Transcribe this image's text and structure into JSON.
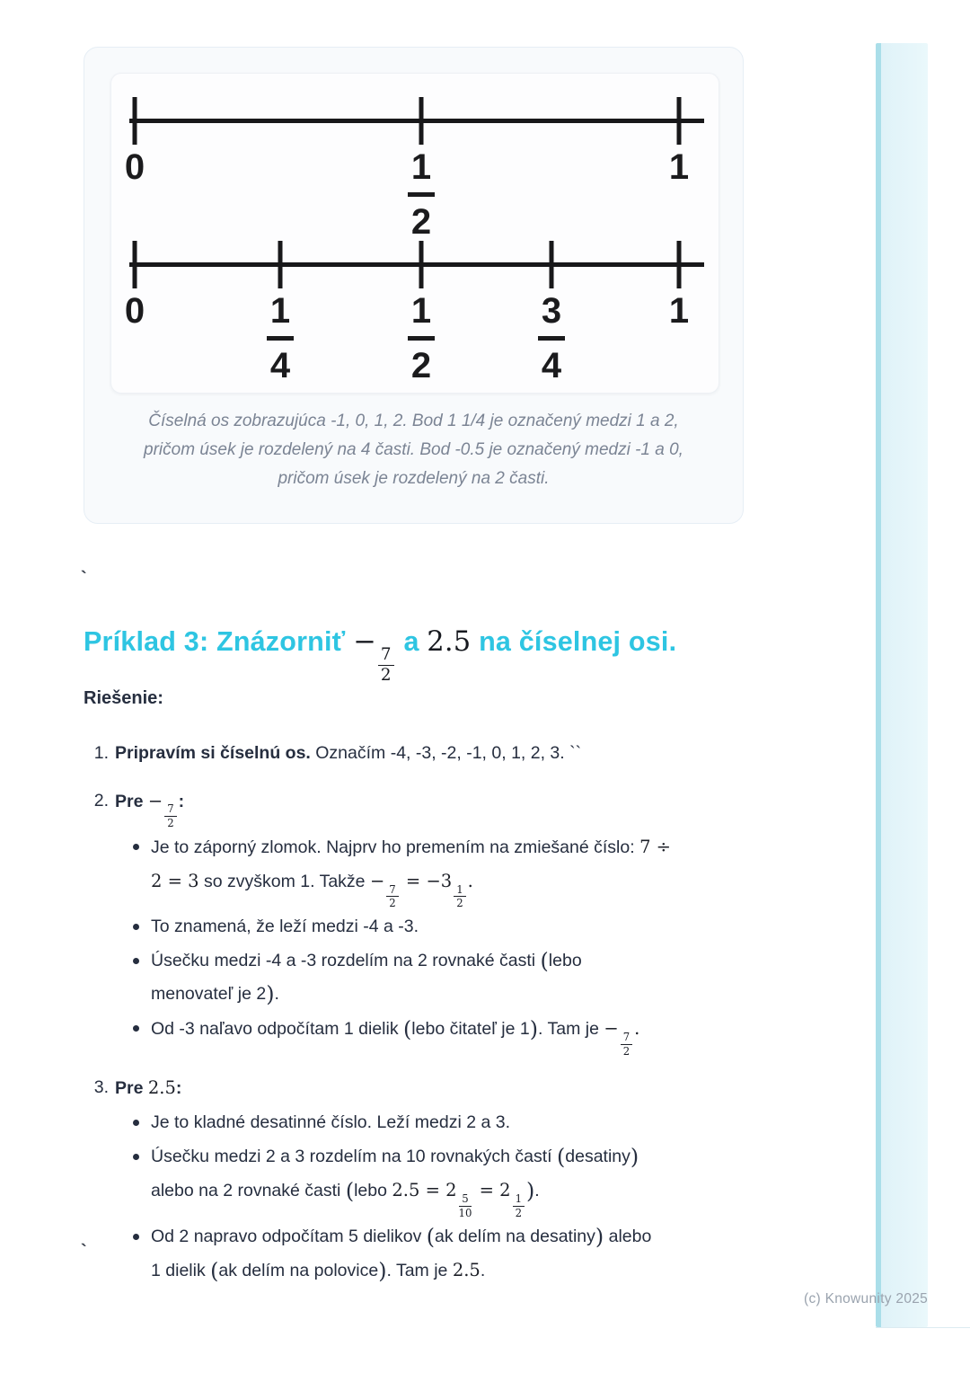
{
  "bullet_char": "•",
  "colors": {
    "accent": "#2ec5e2",
    "body_text": "#262e3f",
    "caption_text": "#7b8494",
    "figure_ink": "#18181a",
    "bar_fill": "#e7f5f9",
    "bar_edge": "#aadee9",
    "footer_text": "#9aa3ae"
  },
  "figure": {
    "line1": {
      "description": "number line 0 to 1 with midpoint one half",
      "ticks": [
        {
          "whole": "0"
        },
        {
          "num": "1",
          "den": "2"
        },
        {
          "whole": "1"
        }
      ]
    },
    "line2": {
      "description": "number line 0 to 1 divided into quarters",
      "ticks": [
        {
          "whole": "0"
        },
        {
          "num": "1",
          "den": "4"
        },
        {
          "num": "1",
          "den": "2"
        },
        {
          "num": "3",
          "den": "4"
        },
        {
          "whole": "1"
        }
      ]
    },
    "caption": [
      "Číselná os zobrazujúca -1, 0, 1, 2. Bod 1 1/4 je označený medzi 1 a 2,",
      "pričom úsek je rozdelený na 4 časti. Bod -0.5 je označený medzi -1 a 0,",
      "pričom úsek je rozdelený na 2 časti."
    ]
  },
  "stray": {
    "tick1": "`",
    "tick2": "`"
  },
  "heading": {
    "segments": [
      {
        "t": "Príklad 3: Znázorniť "
      },
      {
        "t": "−",
        "s": "m"
      },
      {
        "f": [
          "7",
          "2"
        ]
      },
      {
        "t": " a "
      },
      {
        "t": "2.5",
        "s": "m"
      },
      {
        "t": " na číselnej osi."
      }
    ]
  },
  "solution_label": "Riešenie:",
  "items": [
    {
      "marker": "1.",
      "line": [
        {
          "t": "Pripravím si číselnú os.",
          "s": "b"
        },
        {
          "t": " Označím -4, -3, -2, -1, 0, 1, 2, 3. ``"
        }
      ],
      "bullets": []
    },
    {
      "marker": "2.",
      "line": [
        {
          "t": "Pre ",
          "s": "b"
        },
        {
          "t": "−",
          "s": "m"
        },
        {
          "f": [
            "7",
            "2"
          ]
        },
        {
          "t": ":",
          "s": "b"
        }
      ],
      "bullets": [
        {
          "lines": [
            [
              {
                "t": "Je to záporný zlomok. Najprv ho premením na zmiešané číslo: "
              },
              {
                "t": "7 ÷",
                "s": "m"
              }
            ],
            [
              {
                "t": "2 = 3",
                "s": "m"
              },
              {
                "t": " so zvyškom 1. Takže "
              },
              {
                "t": "−",
                "s": "m"
              },
              {
                "f": [
                  "7",
                  "2"
                ]
              },
              {
                "t": " = −3",
                "s": "m"
              },
              {
                "f": [
                  "1",
                  "2"
                ]
              },
              {
                "t": ".",
                "s": "m"
              }
            ]
          ]
        },
        {
          "lines": [
            [
              {
                "t": "To znamená, že leží medzi -4 a -3."
              }
            ]
          ]
        },
        {
          "lines": [
            [
              {
                "t": "Úsečku medzi -4 a -3 rozdelím na 2 rovnaké časti "
              },
              {
                "t": "(",
                "s": "p"
              },
              {
                "t": "lebo"
              }
            ],
            [
              {
                "t": "menovateľ je 2"
              },
              {
                "t": ")",
                "s": "p"
              },
              {
                "t": "."
              }
            ]
          ]
        },
        {
          "lines": [
            [
              {
                "t": "Od -3 naľavo odpočítam 1 dielik "
              },
              {
                "t": "(",
                "s": "p"
              },
              {
                "t": "lebo čitateľ je 1"
              },
              {
                "t": ")",
                "s": "p"
              },
              {
                "t": ". Tam je "
              },
              {
                "t": "−",
                "s": "m"
              },
              {
                "f": [
                  "7",
                  "2"
                ]
              },
              {
                "t": ".",
                "s": "m"
              }
            ]
          ]
        }
      ]
    },
    {
      "marker": "3.",
      "line": [
        {
          "t": "Pre ",
          "s": "b"
        },
        {
          "t": "2.5",
          "s": "m"
        },
        {
          "t": ":",
          "s": "b"
        }
      ],
      "bullets": [
        {
          "lines": [
            [
              {
                "t": "Je to kladné desatinné číslo. Leží medzi 2 a 3."
              }
            ]
          ]
        },
        {
          "lines": [
            [
              {
                "t": "Úsečku medzi 2 a 3 rozdelím na 10 rovnakých častí "
              },
              {
                "t": "(",
                "s": "p"
              },
              {
                "t": "desatiny"
              },
              {
                "t": ")",
                "s": "p"
              }
            ],
            [
              {
                "t": "alebo na 2 rovnaké časti "
              },
              {
                "t": "(",
                "s": "p"
              },
              {
                "t": "lebo "
              },
              {
                "t": "2.5 = 2",
                "s": "m"
              },
              {
                "f": [
                  "5",
                  "10"
                ]
              },
              {
                "t": " = 2",
                "s": "m"
              },
              {
                "f": [
                  "1",
                  "2"
                ]
              },
              {
                "t": ")",
                "s": "p"
              },
              {
                "t": "."
              }
            ]
          ]
        },
        {
          "lines": [
            [
              {
                "t": "Od 2 napravo odpočítam 5 dielikov "
              },
              {
                "t": "(",
                "s": "p"
              },
              {
                "t": "ak delím na desatiny"
              },
              {
                "t": ")",
                "s": "p"
              },
              {
                "t": " alebo"
              }
            ],
            [
              {
                "t": "1 dielik "
              },
              {
                "t": "(",
                "s": "p"
              },
              {
                "t": "ak delím na polovice"
              },
              {
                "t": ")",
                "s": "p"
              },
              {
                "t": ". Tam je "
              },
              {
                "t": "2.5",
                "s": "m"
              },
              {
                "t": "."
              }
            ]
          ]
        }
      ]
    }
  ],
  "footer": {
    "copyright": "(c) Knowunity 2025"
  }
}
